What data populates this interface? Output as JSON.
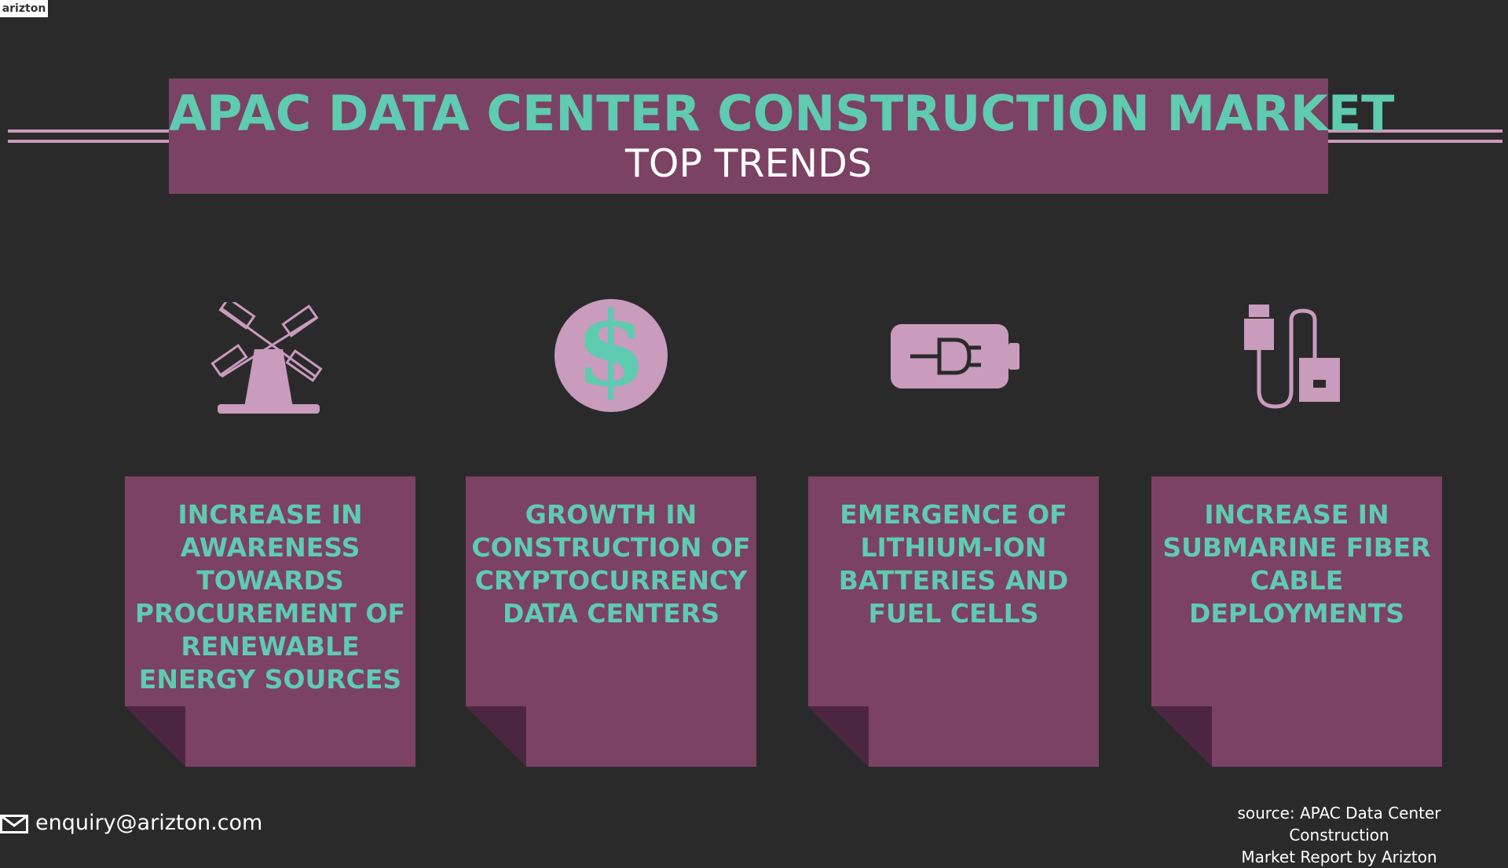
{
  "logo": "arizton",
  "header": {
    "title": "APAC DATA CENTER CONSTRUCTION MARKET",
    "subtitle": "TOP TRENDS"
  },
  "trends": [
    {
      "lines": [
        "INCREASE IN",
        "AWARENESS",
        "TOWARDS",
        "PROCUREMENT OF",
        "RENEWABLE",
        "ENERGY SOURCES"
      ]
    },
    {
      "lines": [
        "GROWTH IN",
        "CONSTRUCTION OF",
        "CRYPTOCURRENCY",
        "DATA CENTERS"
      ]
    },
    {
      "lines": [
        "EMERGENCE OF",
        "LITHIUM-ION",
        "BATTERIES AND",
        "FUEL CELLS"
      ]
    },
    {
      "lines": [
        "INCREASE IN",
        "SUBMARINE FIBER",
        "CABLE",
        "DEPLOYMENTS"
      ]
    }
  ],
  "footer": {
    "email": "enquiry@arizton.com",
    "source": [
      "source: APAC Data Center Construction",
      "Market  Report by Arizton"
    ]
  }
}
